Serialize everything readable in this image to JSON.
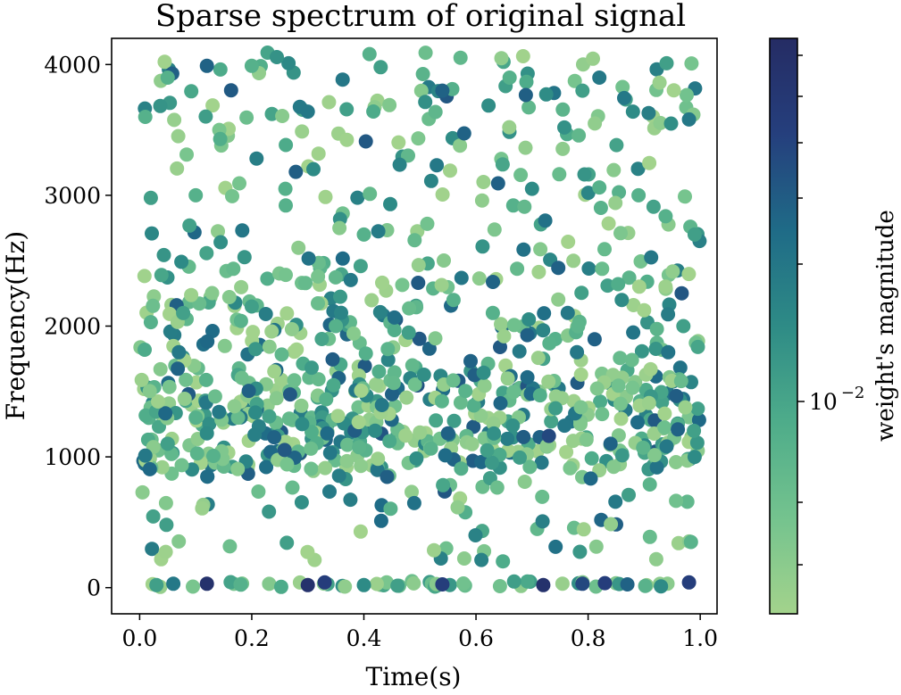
{
  "chart_data": {
    "type": "scatter",
    "title": "Sparse spectrum of original signal",
    "xlabel": "Time(s)",
    "ylabel": "Frequency(Hz)",
    "xlim": [
      -0.05,
      1.03
    ],
    "ylim": [
      -200,
      4200
    ],
    "xticks": [
      0.0,
      0.2,
      0.4,
      0.6,
      0.8,
      1.0
    ],
    "xtick_labels": [
      "0.0",
      "0.2",
      "0.4",
      "0.6",
      "0.8",
      "1.0"
    ],
    "yticks": [
      0,
      1000,
      2000,
      3000,
      4000
    ],
    "ytick_labels": [
      "0",
      "1000",
      "2000",
      "3000",
      "4000"
    ],
    "grid": false,
    "colorbar": {
      "label": "weight's magnitude",
      "scale": "log",
      "tick_base": "10",
      "tick_exponent": "−2",
      "tick_value": 0.01,
      "colormap": [
        "#a3d38c",
        "#74c38e",
        "#4eac8a",
        "#2e8b86",
        "#1f6b87",
        "#253f7d",
        "#252c64"
      ]
    },
    "points_note": "approximately 1000 scattered points; estimated sample of visible markers",
    "points": [
      [
        0.06,
        30,
        0.6
      ],
      [
        0.12,
        30,
        0.95
      ],
      [
        0.3,
        20,
        0.95
      ],
      [
        0.33,
        40,
        0.85
      ],
      [
        0.54,
        25,
        0.85
      ],
      [
        0.72,
        20,
        0.95
      ],
      [
        0.79,
        30,
        0.8
      ],
      [
        0.83,
        35,
        0.85
      ],
      [
        0.87,
        25,
        0.7
      ],
      [
        0.98,
        40,
        0.85
      ],
      [
        0.03,
        20,
        0.4
      ],
      [
        0.18,
        25,
        0.3
      ],
      [
        0.4,
        20,
        0.5
      ],
      [
        0.46,
        15,
        0.4
      ],
      [
        0.93,
        10,
        0.5
      ],
      [
        0.01,
        1010,
        0.6
      ],
      [
        0.05,
        1100,
        0.4
      ],
      [
        0.12,
        1180,
        0.5
      ],
      [
        0.24,
        1150,
        0.7
      ],
      [
        0.34,
        1030,
        0.6
      ],
      [
        0.42,
        1200,
        0.5
      ],
      [
        0.55,
        1180,
        0.7
      ],
      [
        0.73,
        1160,
        0.8
      ],
      [
        0.84,
        1100,
        0.7
      ],
      [
        0.94,
        1080,
        0.6
      ],
      [
        0.96,
        1210,
        0.7
      ],
      [
        0.99,
        1000,
        0.5
      ],
      [
        0.1,
        1300,
        0.3
      ],
      [
        0.29,
        1250,
        0.5
      ],
      [
        0.62,
        1050,
        0.4
      ],
      [
        0.02,
        2030,
        0.3
      ],
      [
        0.07,
        1800,
        0.6
      ],
      [
        0.2,
        2150,
        0.4
      ],
      [
        0.35,
        2000,
        0.3
      ],
      [
        0.48,
        1950,
        0.4
      ],
      [
        0.63,
        2100,
        0.3
      ],
      [
        0.78,
        1800,
        0.6
      ],
      [
        0.86,
        2200,
        0.5
      ],
      [
        0.97,
        2000,
        0.4
      ],
      [
        0.56,
        2200,
        0.3
      ],
      [
        0.02,
        2980,
        0.4
      ],
      [
        0.1,
        3000,
        0.3
      ],
      [
        0.26,
        3050,
        0.3
      ],
      [
        0.4,
        2700,
        0.3
      ],
      [
        0.53,
        3230,
        0.6
      ],
      [
        0.7,
        3050,
        0.5
      ],
      [
        0.82,
        3060,
        0.3
      ],
      [
        0.99,
        2700,
        0.4
      ],
      [
        0.89,
        3000,
        0.3
      ],
      [
        0.31,
        3200,
        0.5
      ],
      [
        0.01,
        3600,
        0.3
      ],
      [
        0.05,
        3900,
        0.3
      ],
      [
        0.12,
        3990,
        0.7
      ],
      [
        0.2,
        3990,
        0.3
      ],
      [
        0.3,
        3640,
        0.6
      ],
      [
        0.43,
        3980,
        0.4
      ],
      [
        0.54,
        3800,
        0.7
      ],
      [
        0.66,
        3900,
        0.3
      ],
      [
        0.82,
        3900,
        0.6
      ],
      [
        0.94,
        4010,
        0.4
      ],
      [
        0.98,
        3580,
        0.6
      ],
      [
        0.41,
        4080,
        0.3
      ],
      [
        0.51,
        4090,
        0.2
      ],
      [
        0.79,
        3800,
        0.4
      ],
      [
        0.88,
        3640,
        0.5
      ]
    ]
  }
}
